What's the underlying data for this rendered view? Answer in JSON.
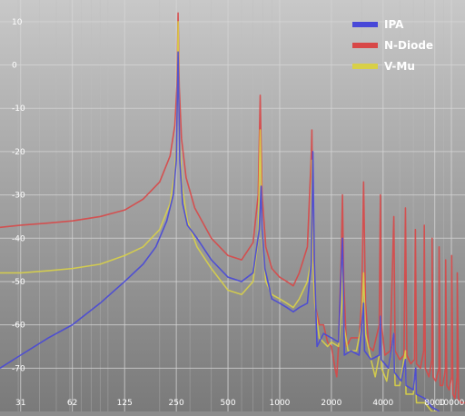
{
  "chart_data": {
    "type": "line",
    "title": "",
    "xlabel": "",
    "ylabel": "",
    "x_scale": "log",
    "xlim": [
      23.5,
      12000
    ],
    "ylim": [
      -80,
      15
    ],
    "grid": true,
    "legend_position": "top-right",
    "x_ticks": [
      {
        "value": 31,
        "label": "31"
      },
      {
        "value": 62,
        "label": "62"
      },
      {
        "value": 125,
        "label": "125"
      },
      {
        "value": 250,
        "label": "250"
      },
      {
        "value": 500,
        "label": "500"
      },
      {
        "value": 1000,
        "label": "1000"
      },
      {
        "value": 2000,
        "label": "2000"
      },
      {
        "value": 4000,
        "label": "4000"
      },
      {
        "value": 8000,
        "label": "8000"
      },
      {
        "value": 10000,
        "label": "10000"
      }
    ],
    "y_ticks": [
      {
        "value": 10,
        "label": "10"
      },
      {
        "value": 0,
        "label": "0"
      },
      {
        "value": -10,
        "label": "-10"
      },
      {
        "value": -20,
        "label": "-20"
      },
      {
        "value": -30,
        "label": "-30"
      },
      {
        "value": -40,
        "label": "-40"
      },
      {
        "value": -50,
        "label": "-50"
      },
      {
        "value": -60,
        "label": "-60"
      },
      {
        "value": -70,
        "label": "-70"
      }
    ],
    "series": [
      {
        "name": "IPA",
        "color": "#4848d8",
        "points": [
          [
            23.5,
            -70
          ],
          [
            31,
            -67
          ],
          [
            45,
            -63
          ],
          [
            62,
            -60
          ],
          [
            90,
            -55
          ],
          [
            125,
            -50
          ],
          [
            160,
            -46
          ],
          [
            190,
            -42
          ],
          [
            220,
            -36
          ],
          [
            240,
            -30
          ],
          [
            250,
            -22
          ],
          [
            256,
            3
          ],
          [
            262,
            -22
          ],
          [
            272,
            -32
          ],
          [
            290,
            -37
          ],
          [
            330,
            -40
          ],
          [
            400,
            -45
          ],
          [
            500,
            -49
          ],
          [
            600,
            -50
          ],
          [
            700,
            -48
          ],
          [
            760,
            -38
          ],
          [
            780,
            -28
          ],
          [
            790,
            -38
          ],
          [
            820,
            -47
          ],
          [
            900,
            -54
          ],
          [
            1000,
            -55
          ],
          [
            1100,
            -56
          ],
          [
            1200,
            -57
          ],
          [
            1300,
            -56
          ],
          [
            1450,
            -55
          ],
          [
            1530,
            -45
          ],
          [
            1560,
            -20
          ],
          [
            1590,
            -45
          ],
          [
            1650,
            -65
          ],
          [
            1800,
            -62
          ],
          [
            2000,
            -63
          ],
          [
            2200,
            -64
          ],
          [
            2320,
            -40
          ],
          [
            2350,
            -52
          ],
          [
            2380,
            -67
          ],
          [
            2600,
            -66
          ],
          [
            2900,
            -67
          ],
          [
            3080,
            -55
          ],
          [
            3120,
            -66
          ],
          [
            3400,
            -68
          ],
          [
            3800,
            -67
          ],
          [
            3860,
            -58
          ],
          [
            3900,
            -68
          ],
          [
            4300,
            -70
          ],
          [
            4620,
            -62
          ],
          [
            4660,
            -71
          ],
          [
            5100,
            -73
          ],
          [
            5400,
            -68
          ],
          [
            5440,
            -74
          ],
          [
            6000,
            -75
          ],
          [
            6200,
            -70
          ],
          [
            6240,
            -76
          ],
          [
            7000,
            -77
          ],
          [
            7700,
            -79
          ],
          [
            8500,
            -80
          ]
        ]
      },
      {
        "name": "N-Diode",
        "color": "#d84848",
        "points": [
          [
            23.5,
            -37.5
          ],
          [
            31,
            -37
          ],
          [
            45,
            -36.5
          ],
          [
            62,
            -36
          ],
          [
            90,
            -35
          ],
          [
            125,
            -33.5
          ],
          [
            160,
            -31
          ],
          [
            200,
            -27
          ],
          [
            230,
            -21
          ],
          [
            245,
            -14
          ],
          [
            252,
            -5
          ],
          [
            256,
            12
          ],
          [
            260,
            -5
          ],
          [
            268,
            -17
          ],
          [
            285,
            -26
          ],
          [
            320,
            -33
          ],
          [
            400,
            -40
          ],
          [
            500,
            -44
          ],
          [
            600,
            -45
          ],
          [
            700,
            -41
          ],
          [
            750,
            -30
          ],
          [
            770,
            -7
          ],
          [
            790,
            -30
          ],
          [
            830,
            -42
          ],
          [
            900,
            -47
          ],
          [
            1000,
            -49
          ],
          [
            1100,
            -50
          ],
          [
            1200,
            -51
          ],
          [
            1300,
            -48
          ],
          [
            1450,
            -42
          ],
          [
            1530,
            -20
          ],
          [
            1540,
            -15
          ],
          [
            1560,
            -40
          ],
          [
            1600,
            -55
          ],
          [
            1700,
            -60
          ],
          [
            1800,
            -60
          ],
          [
            1900,
            -64
          ],
          [
            2000,
            -65
          ],
          [
            2100,
            -70
          ],
          [
            2150,
            -72
          ],
          [
            2200,
            -65
          ],
          [
            2280,
            -45
          ],
          [
            2320,
            -30
          ],
          [
            2360,
            -50
          ],
          [
            2450,
            -65
          ],
          [
            2600,
            -63
          ],
          [
            2900,
            -63
          ],
          [
            3000,
            -55
          ],
          [
            3080,
            -27
          ],
          [
            3160,
            -55
          ],
          [
            3300,
            -65
          ],
          [
            3500,
            -66
          ],
          [
            3800,
            -60
          ],
          [
            3860,
            -30
          ],
          [
            3920,
            -60
          ],
          [
            4100,
            -67
          ],
          [
            4400,
            -66
          ],
          [
            4620,
            -35
          ],
          [
            4700,
            -66
          ],
          [
            5000,
            -68
          ],
          [
            5300,
            -67
          ],
          [
            5400,
            -33
          ],
          [
            5500,
            -67
          ],
          [
            5800,
            -69
          ],
          [
            6100,
            -68
          ],
          [
            6170,
            -38
          ],
          [
            6260,
            -69
          ],
          [
            6600,
            -70
          ],
          [
            6900,
            -66
          ],
          [
            6950,
            -37
          ],
          [
            7050,
            -70
          ],
          [
            7400,
            -72
          ],
          [
            7700,
            -68
          ],
          [
            7720,
            -40
          ],
          [
            7820,
            -72
          ],
          [
            8100,
            -73
          ],
          [
            8460,
            -70
          ],
          [
            8480,
            -42
          ],
          [
            8600,
            -74
          ],
          [
            8900,
            -74
          ],
          [
            9250,
            -70
          ],
          [
            9260,
            -45
          ],
          [
            9400,
            -74
          ],
          [
            9700,
            -75
          ],
          [
            10020,
            -72
          ],
          [
            10040,
            -44
          ],
          [
            10200,
            -76
          ],
          [
            10500,
            -77
          ],
          [
            10800,
            -72
          ],
          [
            10820,
            -48
          ],
          [
            11000,
            -77
          ],
          [
            11400,
            -78
          ],
          [
            12000,
            -78
          ]
        ]
      },
      {
        "name": "V-Mu",
        "color": "#d8d048",
        "points": [
          [
            23.5,
            -48
          ],
          [
            31,
            -48
          ],
          [
            45,
            -47.5
          ],
          [
            62,
            -47
          ],
          [
            90,
            -46
          ],
          [
            125,
            -44
          ],
          [
            160,
            -42
          ],
          [
            200,
            -38
          ],
          [
            230,
            -32
          ],
          [
            245,
            -25
          ],
          [
            252,
            -15
          ],
          [
            256,
            10
          ],
          [
            260,
            -15
          ],
          [
            270,
            -28
          ],
          [
            290,
            -36
          ],
          [
            330,
            -42
          ],
          [
            400,
            -47
          ],
          [
            500,
            -52
          ],
          [
            600,
            -53
          ],
          [
            700,
            -50
          ],
          [
            750,
            -40
          ],
          [
            770,
            -15
          ],
          [
            790,
            -40
          ],
          [
            830,
            -50
          ],
          [
            900,
            -53
          ],
          [
            1000,
            -54
          ],
          [
            1100,
            -55
          ],
          [
            1200,
            -56
          ],
          [
            1300,
            -54
          ],
          [
            1450,
            -50
          ],
          [
            1530,
            -45
          ],
          [
            1540,
            -22
          ],
          [
            1560,
            -45
          ],
          [
            1600,
            -55
          ],
          [
            1700,
            -63
          ],
          [
            1900,
            -65
          ],
          [
            2000,
            -64
          ],
          [
            2200,
            -65
          ],
          [
            2300,
            -55
          ],
          [
            2320,
            -45
          ],
          [
            2360,
            -60
          ],
          [
            2500,
            -66
          ],
          [
            2800,
            -66
          ],
          [
            3000,
            -60
          ],
          [
            3080,
            -48
          ],
          [
            3160,
            -62
          ],
          [
            3400,
            -68
          ],
          [
            3600,
            -72
          ],
          [
            3800,
            -67
          ],
          [
            3860,
            -58
          ],
          [
            3920,
            -70
          ],
          [
            4200,
            -73
          ],
          [
            4620,
            -62
          ],
          [
            4700,
            -74
          ],
          [
            5000,
            -74
          ],
          [
            5400,
            -66
          ],
          [
            5440,
            -76
          ],
          [
            6000,
            -76
          ],
          [
            6170,
            -72
          ],
          [
            6260,
            -78
          ],
          [
            7000,
            -78
          ],
          [
            7700,
            -80
          ],
          [
            8500,
            -80
          ]
        ]
      }
    ]
  }
}
